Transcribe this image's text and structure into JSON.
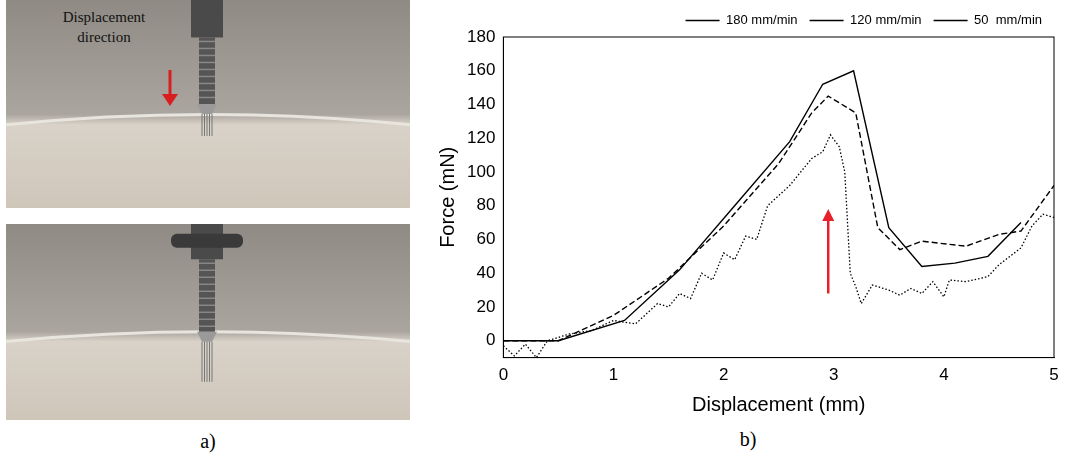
{
  "figure": {
    "panel_a": {
      "label": "a)",
      "annotation": "Displacement direction",
      "annotation_color": "#d81e1e"
    },
    "panel_b": {
      "label": "b)"
    }
  },
  "chart_data": {
    "type": "line",
    "x_label": "Displacement (mm)",
    "y_label": "Force (mN)",
    "xlim": [
      0,
      5
    ],
    "xticks": [
      0,
      1,
      2,
      3,
      4,
      5
    ],
    "ylim": [
      -10,
      180
    ],
    "yticks": [
      0,
      20,
      40,
      60,
      80,
      100,
      120,
      140,
      160,
      180
    ],
    "grid": false,
    "legend": "top-right",
    "series": [
      {
        "name": "180 mm/min",
        "color": "#000000",
        "line_style": "solid",
        "x": [
          0,
          0.5,
          1.1,
          1.6,
          2.1,
          2.6,
          2.9,
          3.18,
          3.5,
          3.8,
          4.1,
          4.4,
          4.7
        ],
        "values": [
          0,
          0,
          12,
          42,
          80,
          118,
          152,
          160,
          67,
          44,
          46,
          50,
          70
        ]
      },
      {
        "name": "120 mm/min",
        "color": "#000000",
        "line_style": "dashed",
        "x": [
          0,
          0.5,
          1.0,
          1.5,
          2.0,
          2.5,
          2.8,
          2.95,
          3.2,
          3.4,
          3.6,
          3.8,
          4.2,
          4.5,
          4.7,
          5.0
        ],
        "values": [
          0,
          0,
          15,
          37,
          68,
          105,
          135,
          145,
          135,
          67,
          54,
          59,
          56,
          63,
          65,
          92
        ]
      },
      {
        "name": "50  mm/min",
        "color": "#000000",
        "line_style": "dotted",
        "x": [
          0,
          0.1,
          0.2,
          0.3,
          0.4,
          0.6,
          0.8,
          1.0,
          1.2,
          1.4,
          1.5,
          1.6,
          1.7,
          1.8,
          1.9,
          2.0,
          2.1,
          2.2,
          2.3,
          2.4,
          2.5,
          2.6,
          2.7,
          2.8,
          2.9,
          2.97,
          3.05,
          3.1,
          3.15,
          3.2,
          3.25,
          3.35,
          3.5,
          3.6,
          3.7,
          3.8,
          3.9,
          4.0,
          4.05,
          4.2,
          4.4,
          4.5,
          4.7,
          4.8,
          4.9,
          5.0
        ],
        "values": [
          -3,
          -9,
          -2,
          -10,
          0,
          4,
          6,
          12,
          10,
          22,
          20,
          28,
          25,
          40,
          36,
          52,
          48,
          62,
          60,
          80,
          86,
          92,
          100,
          108,
          112,
          122,
          115,
          100,
          40,
          32,
          22,
          33,
          30,
          27,
          31,
          28,
          35,
          26,
          36,
          35,
          38,
          45,
          55,
          68,
          75,
          73
        ]
      }
    ],
    "annotations": [
      {
        "type": "arrow",
        "x": 2.95,
        "y": [
          28,
          78
        ],
        "color": "#e8202a"
      }
    ]
  }
}
